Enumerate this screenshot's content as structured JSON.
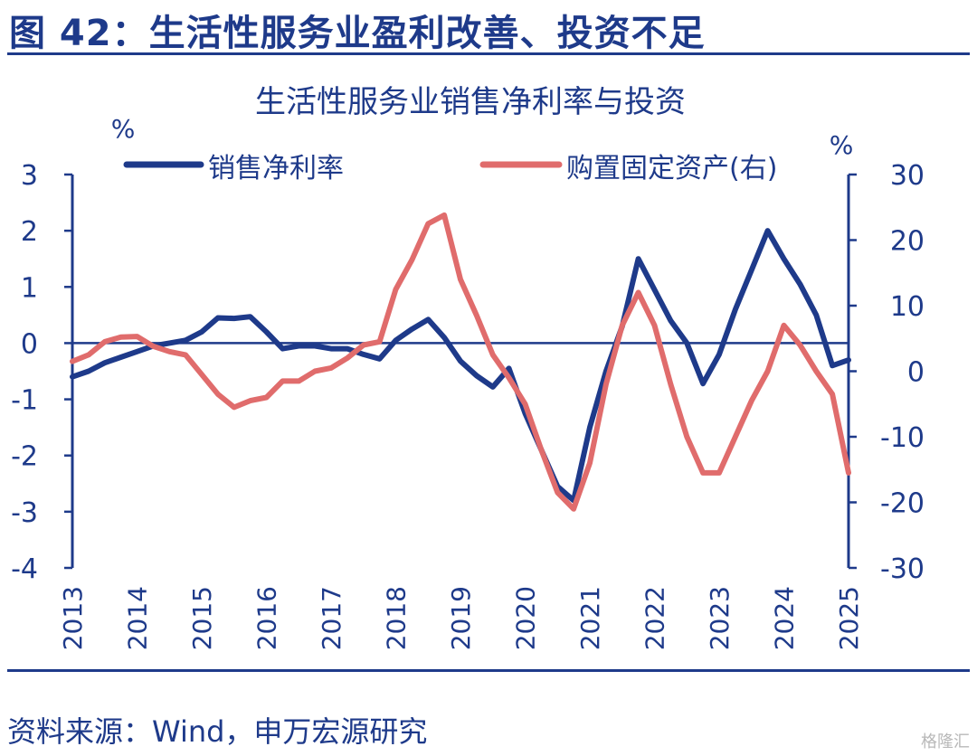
{
  "figure_title": "图 42：生活性服务业盈利改善、投资不足",
  "source": "资料来源：Wind，申万宏源研究",
  "watermark": "格隆汇",
  "colors": {
    "navy": "#1e3a8a",
    "salmon": "#e06c6c"
  },
  "chart_data": {
    "type": "line",
    "title": "生活性服务业销售净利率与投资",
    "ylabel_left": "%",
    "ylabel_right": "%",
    "ylim_left": [
      -4,
      3
    ],
    "ylim_right": [
      -30,
      30
    ],
    "yticks_left": [
      "3",
      "2",
      "1",
      "0",
      "-1",
      "-2",
      "-3",
      "-4"
    ],
    "yticks_right": [
      "30",
      "20",
      "10",
      "0",
      "-10",
      "-20",
      "-30"
    ],
    "xlim": [
      2013,
      2025
    ],
    "xticks": [
      "2013",
      "2014",
      "2015",
      "2016",
      "2017",
      "2018",
      "2019",
      "2020",
      "2021",
      "2022",
      "2023",
      "2024",
      "2025"
    ],
    "legend_position": "top",
    "grid": false,
    "series": [
      {
        "name": "销售净利率",
        "axis": "left",
        "color": "#1e3a8a",
        "x": [
          2013.0,
          2013.25,
          2013.5,
          2013.75,
          2014.0,
          2014.25,
          2014.5,
          2014.75,
          2015.0,
          2015.25,
          2015.5,
          2015.75,
          2016.0,
          2016.25,
          2016.5,
          2016.75,
          2017.0,
          2017.25,
          2017.5,
          2017.75,
          2018.0,
          2018.25,
          2018.5,
          2018.75,
          2019.0,
          2019.25,
          2019.5,
          2019.75,
          2020.0,
          2020.25,
          2020.5,
          2020.75,
          2021.0,
          2021.25,
          2021.5,
          2021.75,
          2022.0,
          2022.25,
          2022.5,
          2022.75,
          2023.0,
          2023.25,
          2023.5,
          2023.75,
          2024.0,
          2024.25,
          2024.5,
          2024.75,
          2025.0
        ],
        "values": [
          -0.6,
          -0.5,
          -0.35,
          -0.25,
          -0.15,
          -0.05,
          0.0,
          0.05,
          0.2,
          0.45,
          0.44,
          0.47,
          0.2,
          -0.1,
          -0.05,
          -0.05,
          -0.1,
          -0.1,
          -0.2,
          -0.28,
          0.05,
          0.25,
          0.42,
          0.1,
          -0.32,
          -0.58,
          -0.78,
          -0.45,
          -1.25,
          -1.9,
          -2.55,
          -2.8,
          -1.5,
          -0.5,
          0.3,
          1.5,
          0.95,
          0.4,
          0.0,
          -0.72,
          -0.2,
          0.6,
          1.3,
          2.0,
          1.5,
          1.05,
          0.5,
          -0.4,
          -0.3
        ]
      },
      {
        "name": "购置固定资产(右)",
        "axis": "right",
        "color": "#e06c6c",
        "x": [
          2013.0,
          2013.25,
          2013.5,
          2013.75,
          2014.0,
          2014.25,
          2014.5,
          2014.75,
          2015.0,
          2015.25,
          2015.5,
          2015.75,
          2016.0,
          2016.25,
          2016.5,
          2016.75,
          2017.0,
          2017.25,
          2017.5,
          2017.75,
          2018.0,
          2018.25,
          2018.5,
          2018.75,
          2019.0,
          2019.25,
          2019.5,
          2019.75,
          2020.0,
          2020.25,
          2020.5,
          2020.75,
          2021.0,
          2021.25,
          2021.5,
          2021.75,
          2022.0,
          2022.25,
          2022.5,
          2022.75,
          2023.0,
          2023.25,
          2023.5,
          2023.75,
          2024.0,
          2024.25,
          2024.5,
          2024.75,
          2025.0
        ],
        "values": [
          1.5,
          2.5,
          4.5,
          5.2,
          5.3,
          3.8,
          3.0,
          2.5,
          -0.5,
          -3.5,
          -5.5,
          -4.5,
          -4.0,
          -1.5,
          -1.5,
          0.0,
          0.5,
          2.0,
          4.0,
          4.5,
          12.5,
          17.0,
          22.5,
          23.8,
          14.0,
          8.5,
          2.5,
          -1.0,
          -5.0,
          -12.0,
          -18.5,
          -21.0,
          -14.0,
          -2.0,
          7.0,
          12.0,
          7.0,
          -2.0,
          -10.0,
          -15.5,
          -15.5,
          -10.0,
          -4.5,
          0.0,
          7.0,
          4.0,
          0.0,
          -3.5,
          -15.5
        ]
      }
    ]
  }
}
